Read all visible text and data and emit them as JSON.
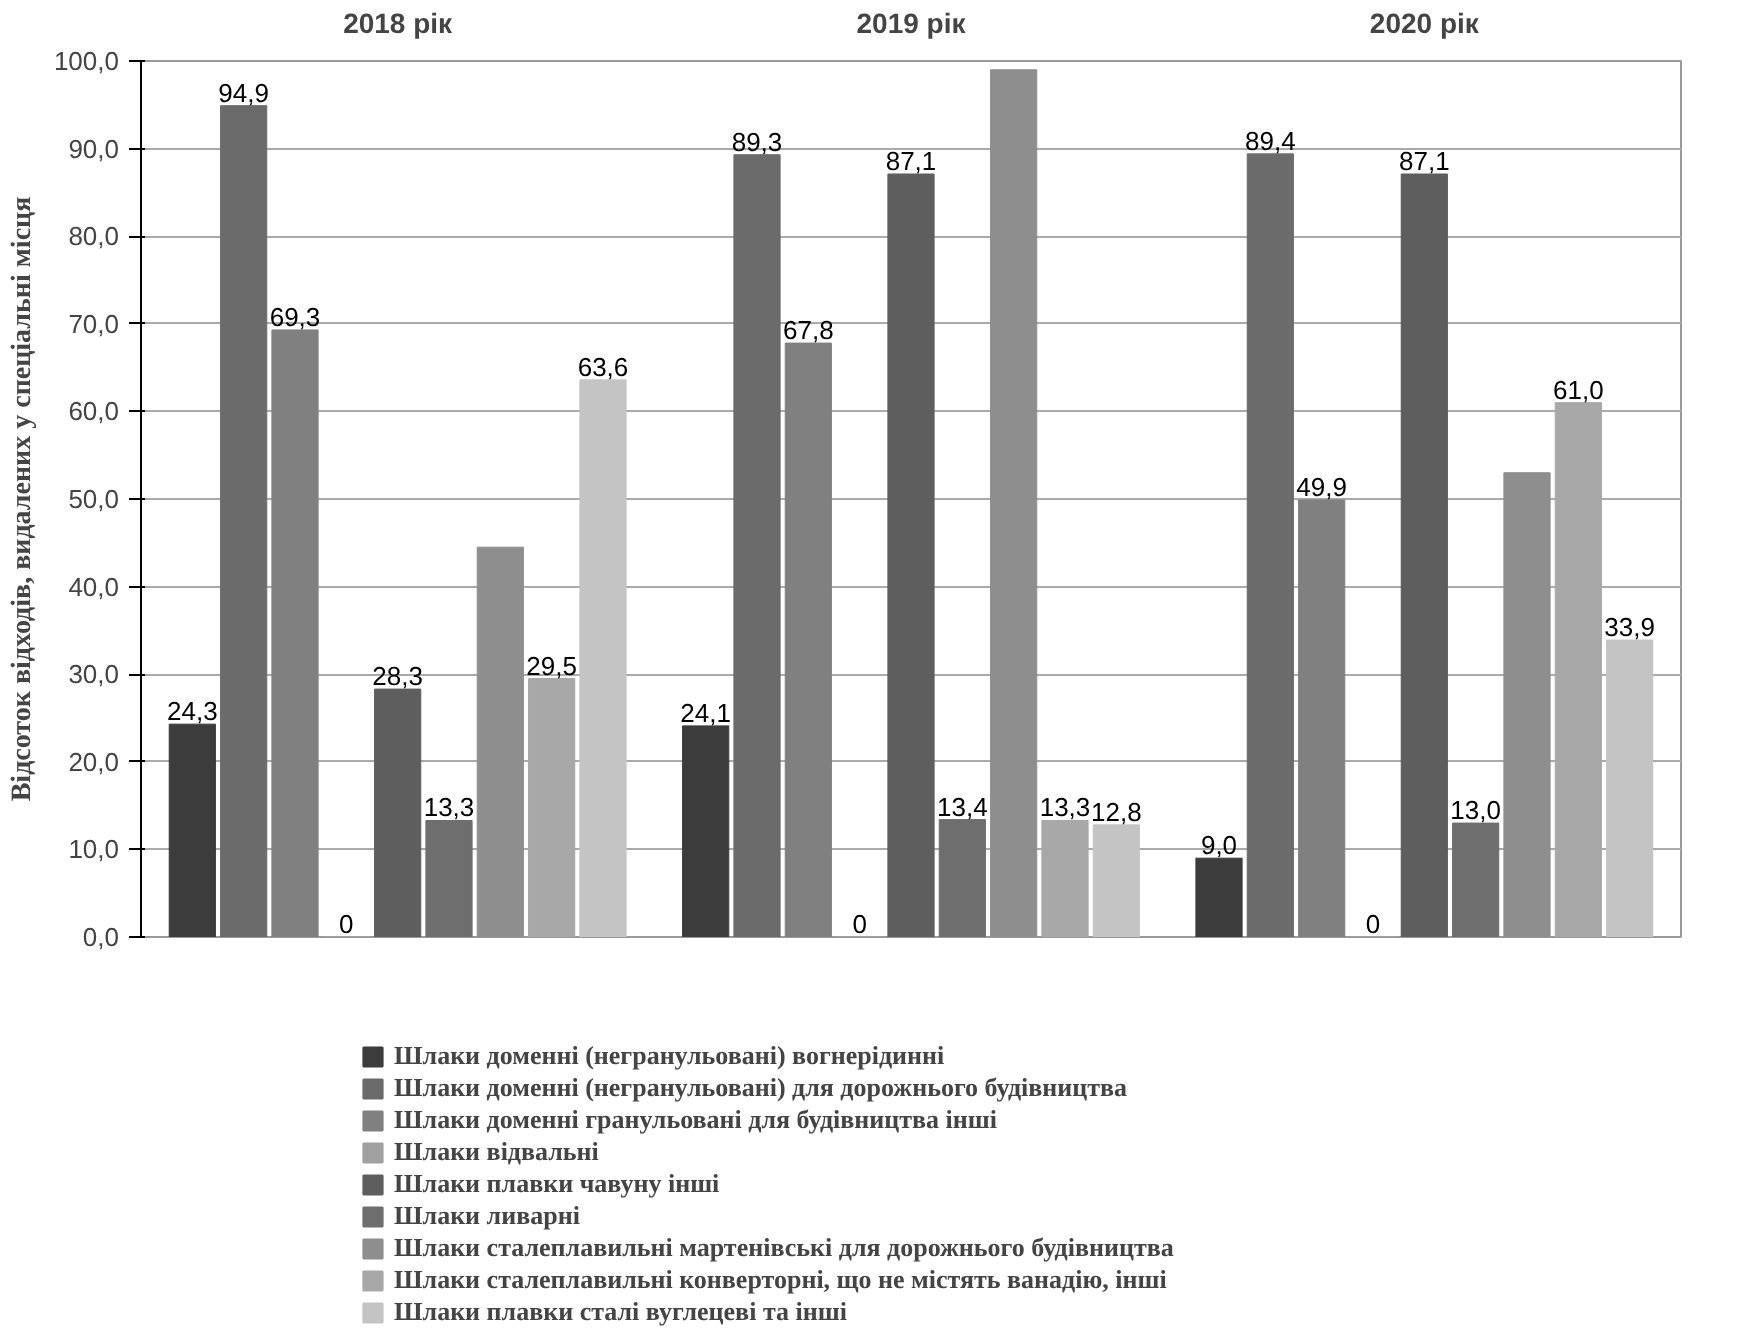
{
  "chart_data": {
    "type": "bar",
    "ylabel": "Відсоток відходів, видалених у спеціальні місця",
    "categories": [
      "2018 рік",
      "2019 рік",
      "2020 рік"
    ],
    "series": [
      {
        "name": "Шлаки доменні (негранульовані) вогнерідинні",
        "color": "#3c3c3c",
        "values": [
          24.3,
          24.1,
          9.0
        ],
        "value_labels": [
          "24,3",
          "24,1",
          "9,0"
        ]
      },
      {
        "name": "Шлаки доменні (негранульовані) для дорожнього будівництва",
        "color": "#6b6b6b",
        "values": [
          94.9,
          89.3,
          89.4
        ],
        "value_labels": [
          "94,9",
          "89,3",
          "89,4"
        ]
      },
      {
        "name": "Шлаки доменні гранульовані для будівництва інші",
        "color": "#808080",
        "values": [
          69.3,
          67.8,
          49.9
        ],
        "value_labels": [
          "69,3",
          "67,8",
          "49,9"
        ]
      },
      {
        "name": "Шлаки відвальні",
        "color": "#a0a0a0",
        "values": [
          0,
          0,
          0
        ],
        "value_labels": [
          "0",
          "0",
          "0"
        ]
      },
      {
        "name": "Шлаки плавки чавуну інші",
        "color": "#5e5e5e",
        "values": [
          28.3,
          87.1,
          87.1
        ],
        "value_labels": [
          "28,3",
          "87,1",
          "87,1"
        ]
      },
      {
        "name": "Шлаки ливарні",
        "color": "#6e6e6e",
        "values": [
          13.3,
          13.4,
          13.0
        ],
        "value_labels": [
          "13,3",
          "13,4",
          "13,0"
        ]
      },
      {
        "name": "Шлаки сталеплавильні мартенівські для дорожнього будівництва",
        "color": "#8e8e8e",
        "values": [
          44.5,
          99.0,
          53.0
        ],
        "value_labels": [
          null,
          null,
          null
        ]
      },
      {
        "name": "Шлаки сталеплавильні конверторні, що не містять ванадію, інші",
        "color": "#a8a8a8",
        "values": [
          29.5,
          13.3,
          61.0
        ],
        "value_labels": [
          "29,5",
          "13,3",
          "61,0"
        ]
      },
      {
        "name": "Шлаки плавки сталі вуглецеві та інші",
        "color": "#c4c4c4",
        "values": [
          63.6,
          12.8,
          33.9
        ],
        "value_labels": [
          "63,6",
          "12,8",
          "33,9"
        ]
      }
    ],
    "ylim": [
      0,
      100
    ],
    "yticks": [
      {
        "value": 0,
        "label": "0,0"
      },
      {
        "value": 10,
        "label": "10,0"
      },
      {
        "value": 20,
        "label": "20,0"
      },
      {
        "value": 30,
        "label": "30,0"
      },
      {
        "value": 40,
        "label": "40,0"
      },
      {
        "value": 50,
        "label": "50,0"
      },
      {
        "value": 60,
        "label": "60,0"
      },
      {
        "value": 70,
        "label": "70,0"
      },
      {
        "value": 80,
        "label": "80,0"
      },
      {
        "value": 90,
        "label": "90,0"
      },
      {
        "value": 100,
        "label": "100,0"
      }
    ],
    "grid": "y",
    "legend": "bottom"
  }
}
